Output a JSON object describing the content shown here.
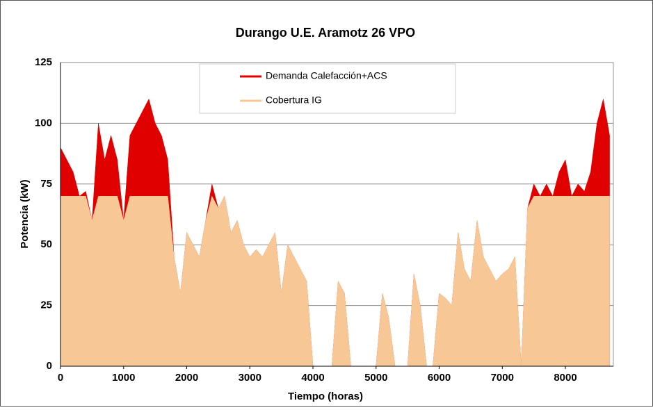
{
  "chart_data": {
    "type": "area",
    "title": "Durango U.E. Aramotz 26 VPO",
    "xlabel": "Tiempo (horas)",
    "ylabel": "Potencia (kW)",
    "x": [
      0,
      100,
      200,
      300,
      400,
      500,
      600,
      700,
      800,
      900,
      1000,
      1100,
      1200,
      1300,
      1400,
      1500,
      1600,
      1700,
      1800,
      1900,
      2000,
      2100,
      2200,
      2300,
      2400,
      2500,
      2600,
      2700,
      2800,
      2900,
      3000,
      3100,
      3200,
      3300,
      3400,
      3500,
      3600,
      3700,
      3800,
      3900,
      4000,
      4100,
      4200,
      4300,
      4400,
      4500,
      4600,
      4700,
      4800,
      4900,
      5000,
      5100,
      5200,
      5300,
      5400,
      5500,
      5600,
      5700,
      5800,
      5900,
      6000,
      6100,
      6200,
      6300,
      6400,
      6500,
      6600,
      6700,
      6800,
      6900,
      7000,
      7100,
      7200,
      7300,
      7400,
      7500,
      7600,
      7700,
      7800,
      7900,
      8000,
      8100,
      8200,
      8300,
      8400,
      8500,
      8600,
      8700
    ],
    "series": [
      {
        "name": "Demanda Calefacción+ACS",
        "color": "#e00000",
        "values": [
          90,
          85,
          80,
          70,
          72,
          60,
          100,
          85,
          95,
          85,
          60,
          95,
          100,
          105,
          110,
          100,
          95,
          85,
          45,
          30,
          55,
          50,
          45,
          60,
          75,
          65,
          70,
          55,
          60,
          50,
          45,
          48,
          45,
          50,
          55,
          30,
          50,
          45,
          40,
          35,
          0,
          0,
          0,
          0,
          35,
          30,
          0,
          0,
          0,
          0,
          0,
          30,
          20,
          0,
          0,
          0,
          38,
          25,
          0,
          0,
          30,
          28,
          25,
          55,
          40,
          35,
          60,
          45,
          40,
          35,
          38,
          40,
          45,
          0,
          65,
          75,
          70,
          75,
          70,
          80,
          85,
          70,
          75,
          72,
          80,
          100,
          110,
          95
        ]
      },
      {
        "name": "Cobertura IG",
        "color": "#f7c896",
        "values": [
          70,
          70,
          70,
          70,
          70,
          60,
          70,
          70,
          70,
          70,
          60,
          70,
          70,
          70,
          70,
          70,
          70,
          70,
          45,
          30,
          55,
          50,
          45,
          60,
          70,
          65,
          70,
          55,
          60,
          50,
          45,
          48,
          45,
          50,
          55,
          30,
          50,
          45,
          40,
          35,
          0,
          0,
          0,
          0,
          35,
          30,
          0,
          0,
          0,
          0,
          0,
          30,
          20,
          0,
          0,
          0,
          38,
          25,
          0,
          0,
          30,
          28,
          25,
          55,
          40,
          35,
          60,
          45,
          40,
          35,
          38,
          40,
          45,
          0,
          65,
          70,
          70,
          70,
          70,
          70,
          70,
          70,
          70,
          70,
          70,
          70,
          70,
          70
        ]
      }
    ],
    "xlim": [
      0,
      8760
    ],
    "xticks": [
      0,
      1000,
      2000,
      3000,
      4000,
      5000,
      6000,
      7000,
      8000
    ],
    "ylim": [
      0,
      125
    ],
    "yticks": [
      0,
      25,
      50,
      75,
      100,
      125
    ],
    "grid": true,
    "legend": "top"
  }
}
